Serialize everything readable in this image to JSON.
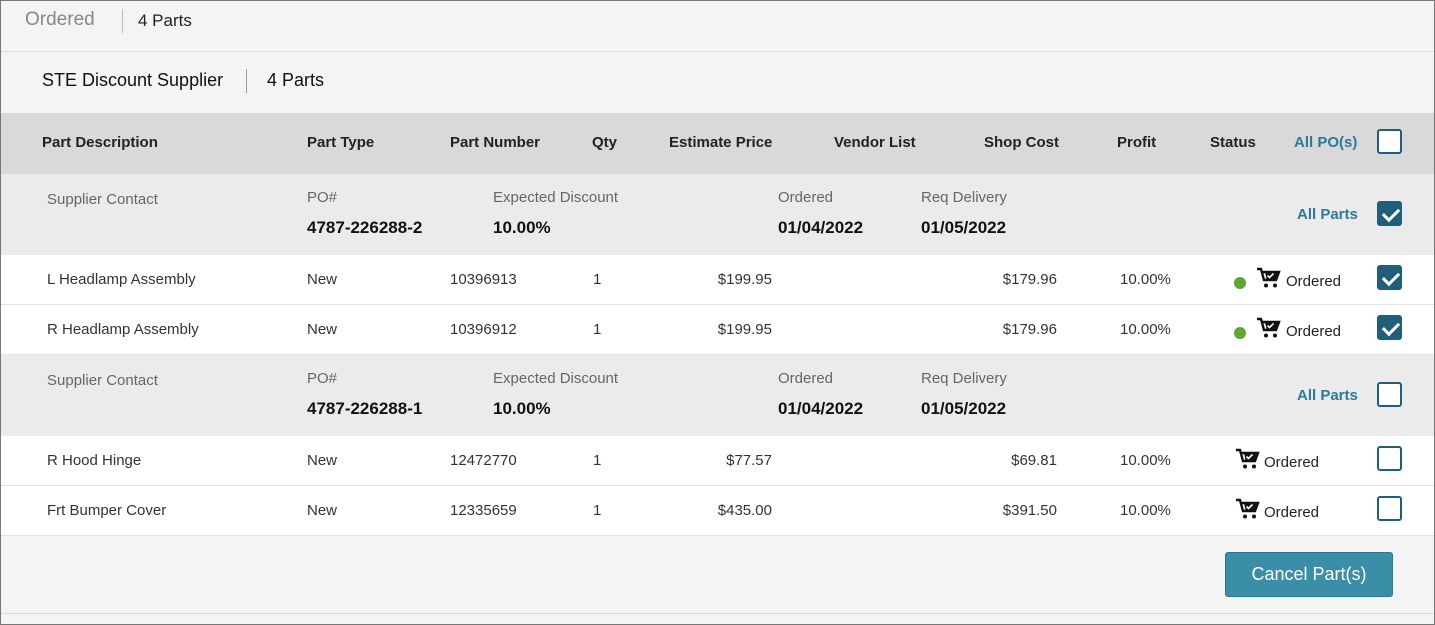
{
  "header": {
    "title": "Ordered",
    "count": "4 Parts"
  },
  "supplier": {
    "name": "STE Discount Supplier",
    "count": "4 Parts"
  },
  "columns": {
    "part_description": "Part Description",
    "part_type": "Part Type",
    "part_number": "Part Number",
    "qty": "Qty",
    "estimate_price": "Estimate Price",
    "vendor_list": "Vendor List",
    "shop_cost": "Shop Cost",
    "profit": "Profit",
    "status": "Status",
    "all_pos": "All PO(s)",
    "all_pos_checked": false
  },
  "po_groups": [
    {
      "supplier_contact_label": "Supplier Contact",
      "po_label": "PO#",
      "po_number": "4787-226288-2",
      "discount_label": "Expected Discount",
      "discount": "10.00%",
      "ordered_label": "Ordered",
      "ordered_date": "01/04/2022",
      "delivery_label": "Req Delivery",
      "delivery_date": "01/05/2022",
      "all_parts_label": "All Parts",
      "all_parts_checked": true,
      "parts": [
        {
          "description": "L Headlamp Assembly",
          "type": "New",
          "number": "10396913",
          "qty": "1",
          "estimate_price": "$199.95",
          "vendor_list": "",
          "shop_cost": "$179.96",
          "profit": "10.00%",
          "status": "Ordered",
          "status_dot": true,
          "checked": true
        },
        {
          "description": "R Headlamp Assembly",
          "type": "New",
          "number": "10396912",
          "qty": "1",
          "estimate_price": "$199.95",
          "vendor_list": "",
          "shop_cost": "$179.96",
          "profit": "10.00%",
          "status": "Ordered",
          "status_dot": true,
          "checked": true
        }
      ]
    },
    {
      "supplier_contact_label": "Supplier Contact",
      "po_label": "PO#",
      "po_number": "4787-226288-1",
      "discount_label": "Expected Discount",
      "discount": "10.00%",
      "ordered_label": "Ordered",
      "ordered_date": "01/04/2022",
      "delivery_label": "Req Delivery",
      "delivery_date": "01/05/2022",
      "all_parts_label": "All Parts",
      "all_parts_checked": false,
      "parts": [
        {
          "description": "R Hood Hinge",
          "type": "New",
          "number": "12472770",
          "qty": "1",
          "estimate_price": "$77.57",
          "vendor_list": "",
          "shop_cost": "$69.81",
          "profit": "10.00%",
          "status": "Ordered",
          "status_dot": false,
          "checked": false
        },
        {
          "description": "Frt Bumper Cover",
          "type": "New",
          "number": "12335659",
          "qty": "1",
          "estimate_price": "$435.00",
          "vendor_list": "",
          "shop_cost": "$391.50",
          "profit": "10.00%",
          "status": "Ordered",
          "status_dot": false,
          "checked": false
        }
      ]
    }
  ],
  "footer": {
    "cancel_label": "Cancel Part(s)"
  },
  "colors": {
    "accent": "#2b7a99",
    "checkbox": "#1f5f7a",
    "status_dot": "#5aa832",
    "button": "#3b8ea8"
  }
}
